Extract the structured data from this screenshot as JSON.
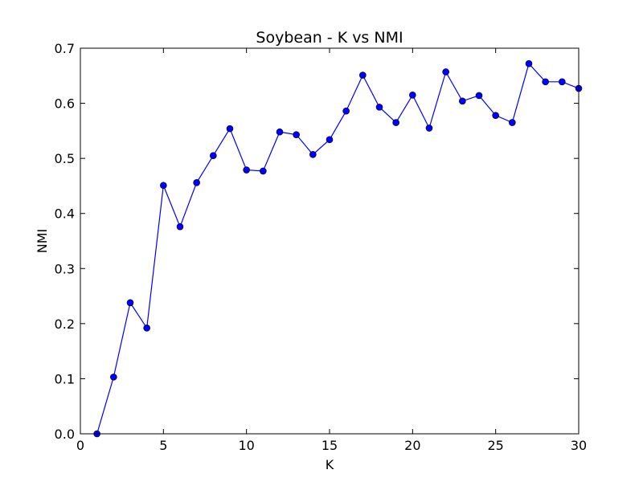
{
  "chart_data": {
    "type": "line",
    "title": "Soybean - K vs NMI",
    "xlabel": "K",
    "ylabel": "NMI",
    "xlim": [
      0,
      30
    ],
    "ylim": [
      0.0,
      0.7
    ],
    "xticks": [
      0,
      5,
      10,
      15,
      20,
      25,
      30
    ],
    "xtick_labels": [
      "0",
      "5",
      "10",
      "15",
      "20",
      "25",
      "30"
    ],
    "yticks": [
      0.0,
      0.1,
      0.2,
      0.3,
      0.4,
      0.5,
      0.6,
      0.7
    ],
    "ytick_labels": [
      "0.0",
      "0.1",
      "0.2",
      "0.3",
      "0.4",
      "0.5",
      "0.6",
      "0.7"
    ],
    "grid": false,
    "series": [
      {
        "color": "#0000ff",
        "marker": "circle",
        "x": [
          1,
          2,
          3,
          4,
          5,
          6,
          7,
          8,
          9,
          10,
          11,
          12,
          13,
          14,
          15,
          16,
          17,
          18,
          19,
          20,
          21,
          22,
          23,
          24,
          25,
          26,
          27,
          28,
          29,
          30
        ],
        "y": [
          0.0,
          0.103,
          0.238,
          0.192,
          0.451,
          0.376,
          0.456,
          0.505,
          0.554,
          0.479,
          0.477,
          0.548,
          0.543,
          0.507,
          0.534,
          0.586,
          0.651,
          0.593,
          0.565,
          0.615,
          0.555,
          0.657,
          0.604,
          0.614,
          0.578,
          0.565,
          0.672,
          0.639,
          0.639,
          0.627
        ]
      }
    ]
  }
}
